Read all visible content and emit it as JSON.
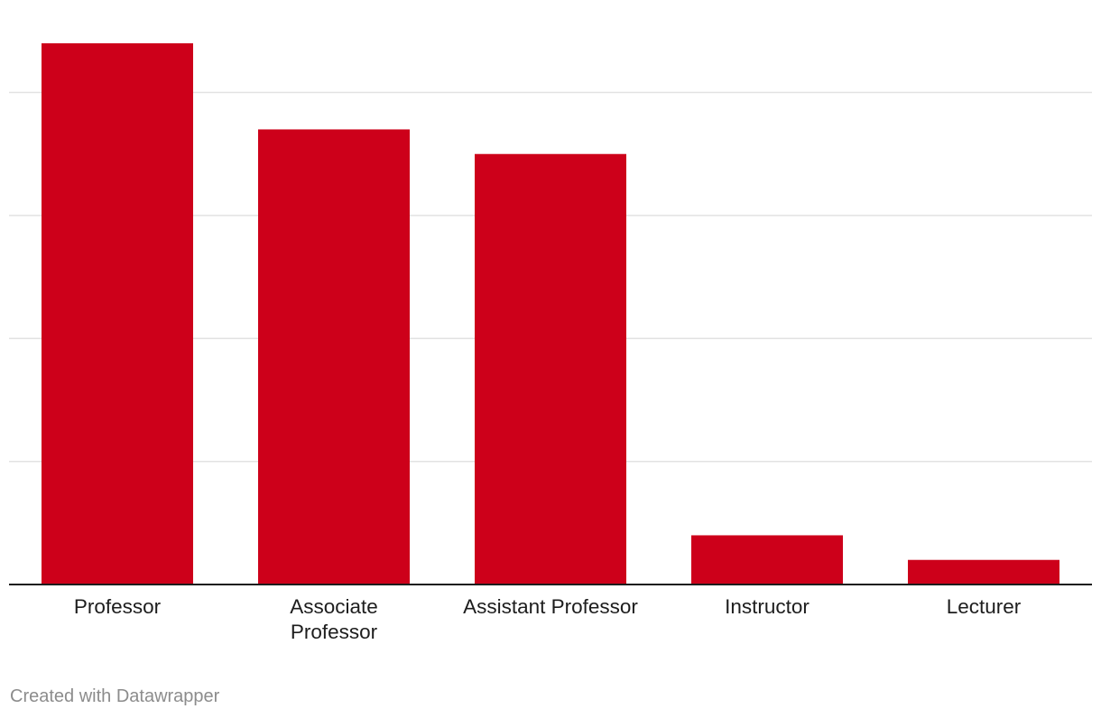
{
  "chart_data": {
    "type": "bar",
    "categories": [
      "Professor",
      "Associate Professor",
      "Assistant Professor",
      "Instructor",
      "Lecturer"
    ],
    "category_lines": [
      [
        "Professor"
      ],
      [
        "Associate",
        "Professor"
      ],
      [
        "Assistant Professor"
      ],
      [
        "Instructor"
      ],
      [
        "Lecturer"
      ]
    ],
    "values": [
      88,
      74,
      70,
      8,
      4
    ],
    "ylim": [
      0,
      88
    ],
    "gridlines": [
      20,
      40,
      60,
      80
    ],
    "grid": true,
    "bar_color": "#cd001a",
    "title": "",
    "xlabel": "",
    "ylabel": ""
  },
  "footer": {
    "credit": "Created with Datawrapper"
  }
}
